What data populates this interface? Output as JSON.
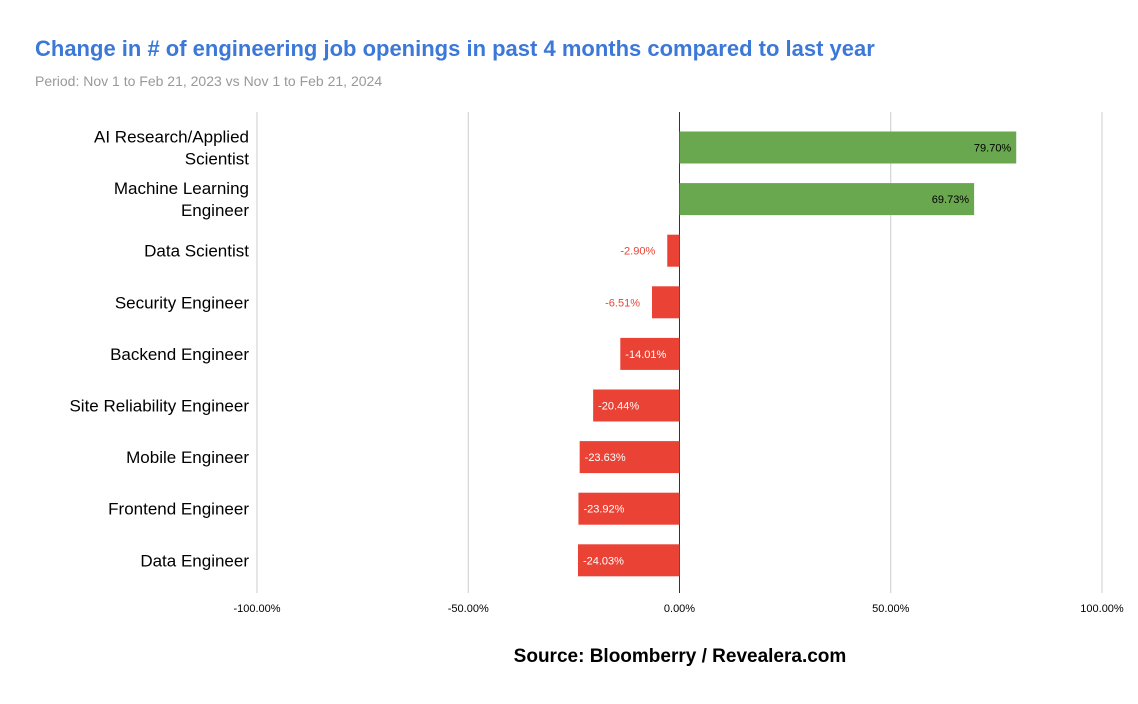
{
  "title": "Change in # of engineering job openings in past 4 months compared to last year",
  "subtitle": "Period: Nov 1 to Feb 21, 2023 vs Nov 1 to Feb 21, 2024",
  "source": "Source: Bloomberry / Revealera.com",
  "colors": {
    "positive": "#6aa84f",
    "negative": "#ea4335",
    "title": "#3c78d8",
    "grid": "#cccccc"
  },
  "chart_data": {
    "type": "bar",
    "orientation": "horizontal",
    "categories": [
      "AI Research/Applied Scientist",
      "Machine Learning Engineer",
      "Data Scientist",
      "Security Engineer",
      "Backend Engineer",
      "Site Reliability Engineer",
      "Mobile Engineer",
      "Frontend Engineer",
      "Data Engineer"
    ],
    "category_lines": [
      [
        "AI Research/Applied",
        "Scientist"
      ],
      [
        "Machine Learning",
        "Engineer"
      ],
      [
        "Data Scientist"
      ],
      [
        "Security Engineer"
      ],
      [
        "Backend Engineer"
      ],
      [
        "Site Reliability Engineer"
      ],
      [
        "Mobile Engineer"
      ],
      [
        "Frontend Engineer"
      ],
      [
        "Data Engineer"
      ]
    ],
    "values": [
      79.7,
      69.73,
      -2.9,
      -6.51,
      -14.01,
      -20.44,
      -23.63,
      -23.92,
      -24.03
    ],
    "data_labels": [
      "79.70%",
      "69.73%",
      "-2.90%",
      "-6.51%",
      "-14.01%",
      "-20.44%",
      "-23.63%",
      "-23.92%",
      "-24.03%"
    ],
    "xlim": [
      -100,
      100
    ],
    "xticks": [
      -100,
      -50,
      0,
      50,
      100
    ],
    "xtick_labels": [
      "-100.00%",
      "-50.00%",
      "0.00%",
      "50.00%",
      "100.00%"
    ],
    "grid": true
  }
}
